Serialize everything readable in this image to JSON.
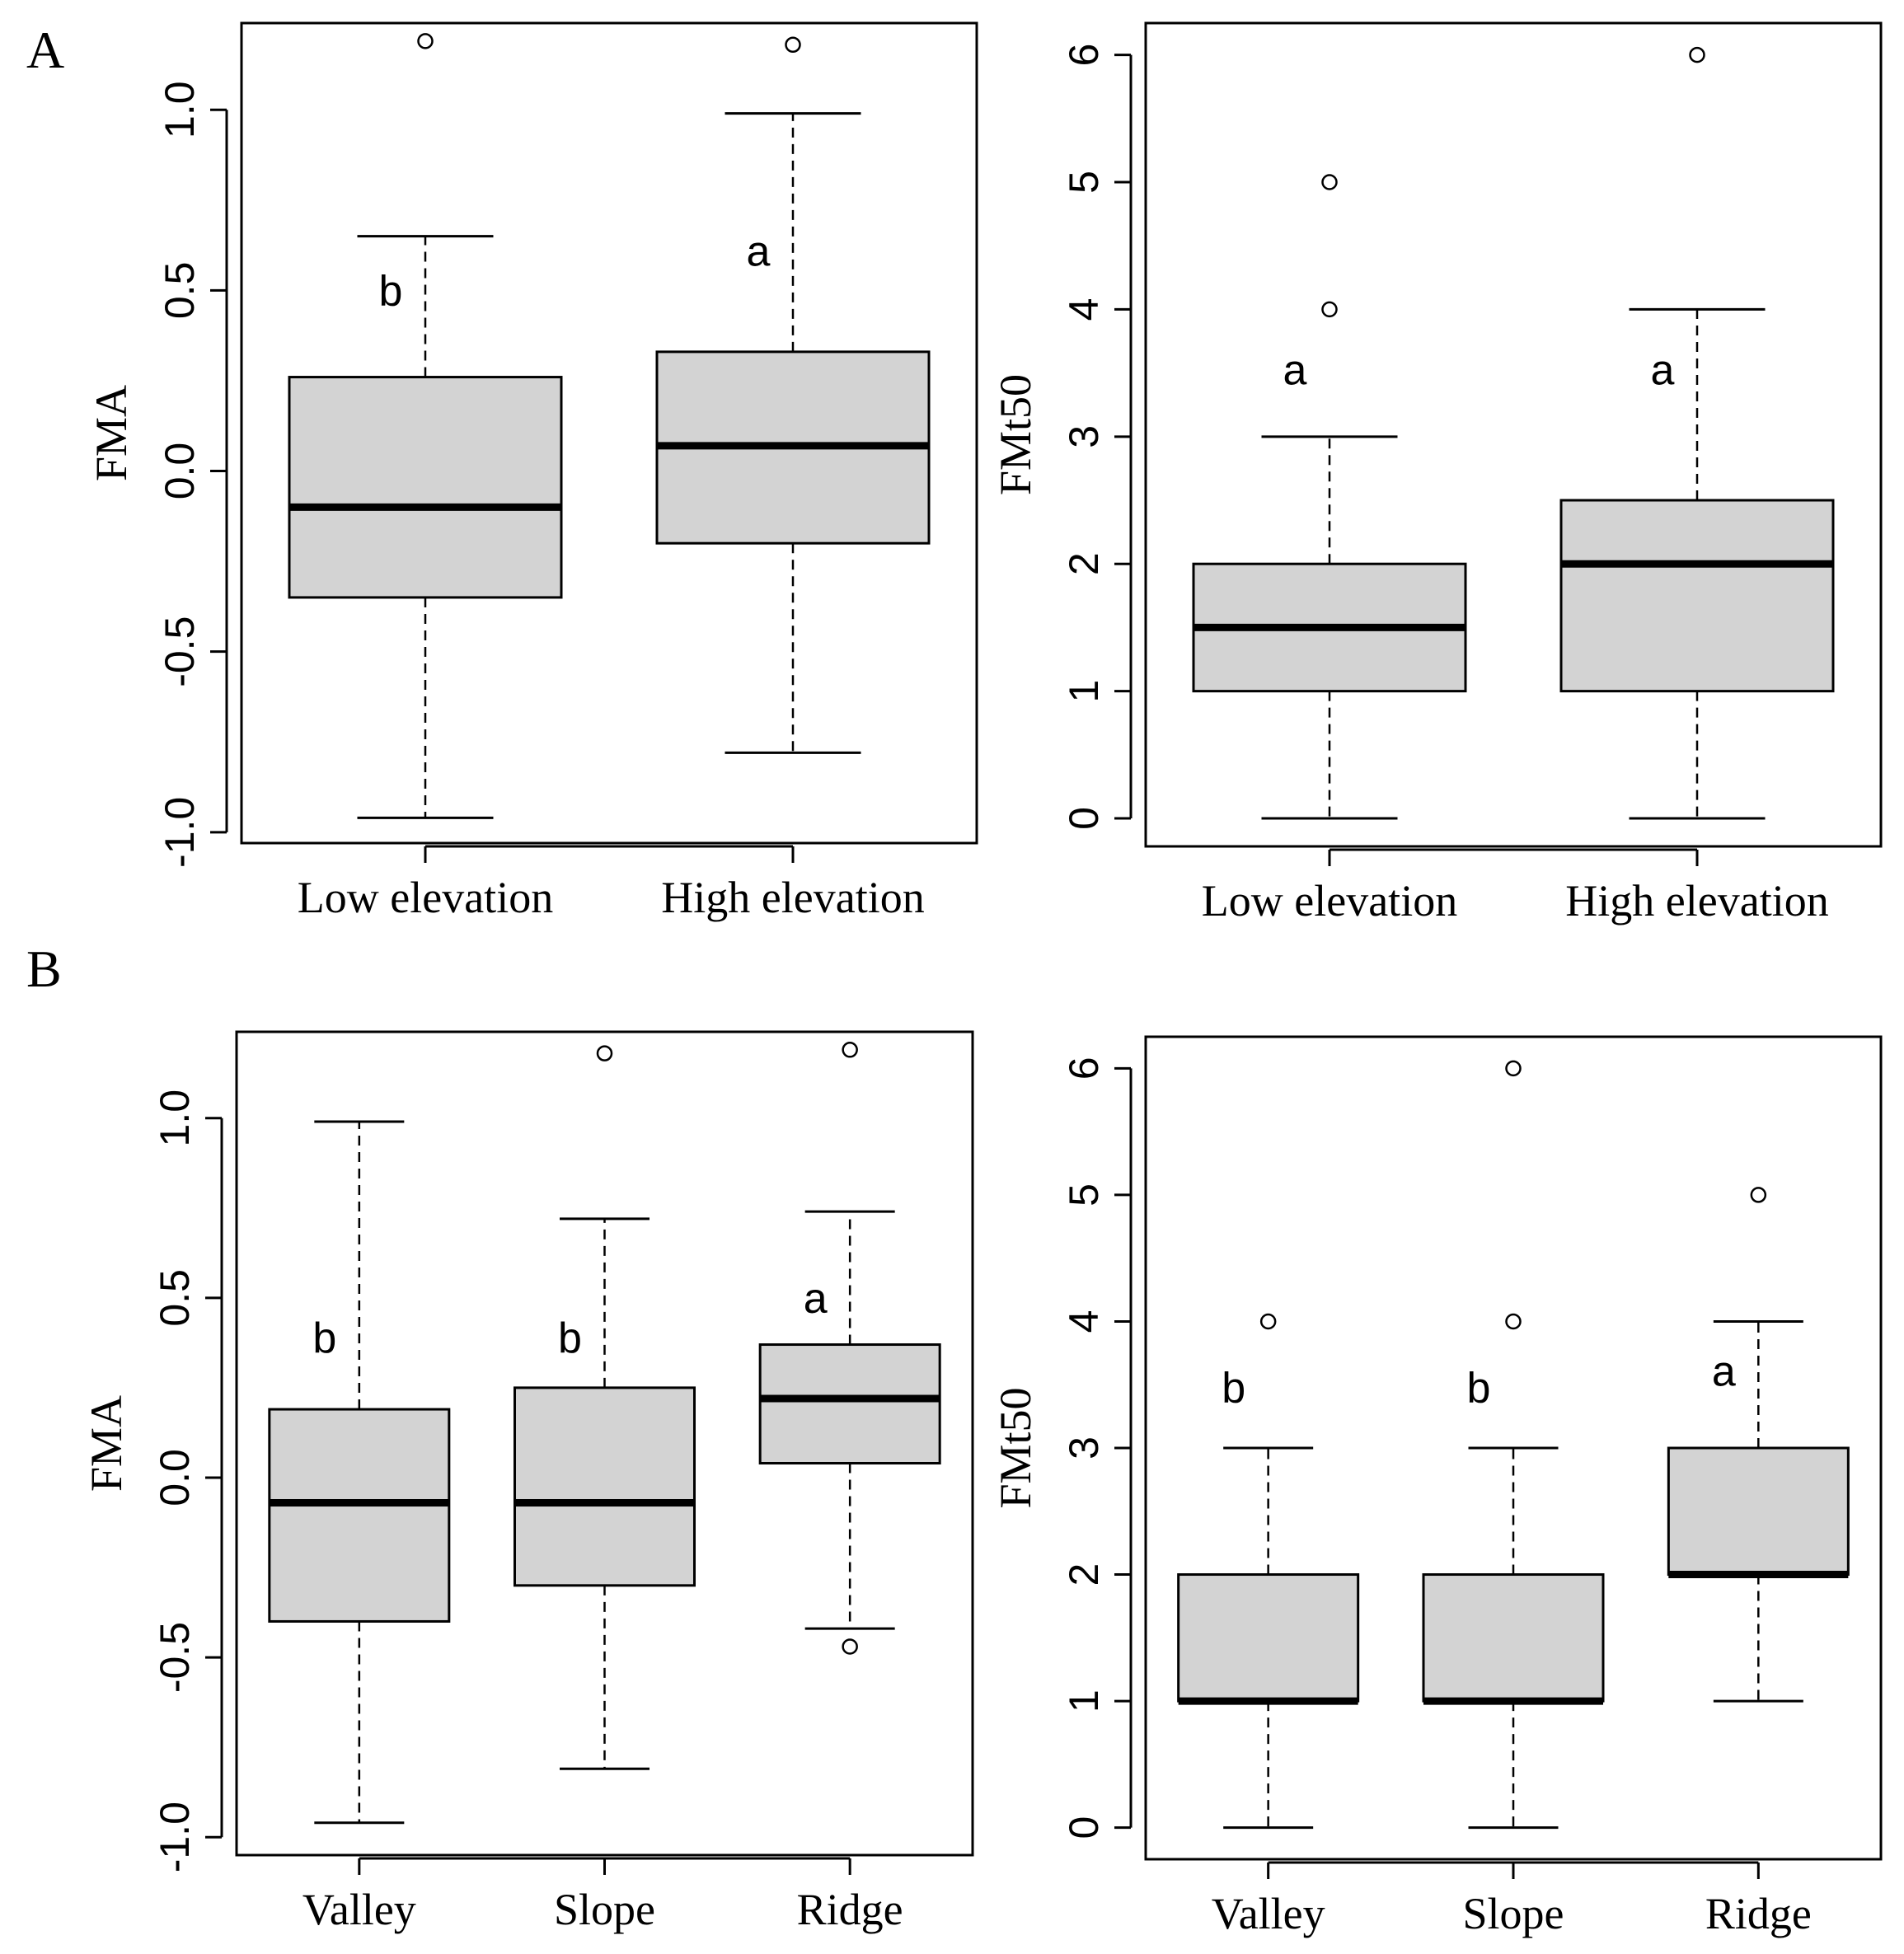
{
  "panels": {
    "A": "A",
    "B": "B"
  },
  "colors": {
    "box_fill": "#d3d3d3",
    "stroke": "#000000",
    "background": "#ffffff"
  },
  "chart_data": [
    {
      "id": "A-left",
      "type": "boxplot",
      "panel": "A",
      "ylabel": "FMA",
      "ylim": [
        -1.03,
        1.24
      ],
      "yticks": [
        -1.0,
        -0.5,
        0.0,
        0.5,
        1.0
      ],
      "ytick_labels": [
        "-1.0",
        "-0.5",
        "0.0",
        "0.5",
        "1.0"
      ],
      "categories": [
        "Low elevation",
        "High elevation"
      ],
      "boxes": [
        {
          "whisker_low": -0.96,
          "q1": -0.35,
          "median": -0.1,
          "q3": 0.26,
          "whisker_high": 0.65,
          "outliers": [
            1.19
          ],
          "letter": "b",
          "letter_y": 0.49
        },
        {
          "whisker_low": -0.78,
          "q1": -0.2,
          "median": 0.07,
          "q3": 0.33,
          "whisker_high": 0.99,
          "outliers": [
            1.18
          ],
          "letter": "a",
          "letter_y": 0.6
        }
      ]
    },
    {
      "id": "A-right",
      "type": "boxplot",
      "panel": "A",
      "ylabel": "FMt50",
      "ylim": [
        -0.22,
        6.25
      ],
      "yticks": [
        0,
        1,
        2,
        3,
        4,
        5,
        6
      ],
      "ytick_labels": [
        "0",
        "1",
        "2",
        "3",
        "4",
        "5",
        "6"
      ],
      "categories": [
        "Low elevation",
        "High elevation"
      ],
      "boxes": [
        {
          "whisker_low": 0,
          "q1": 1,
          "median": 1.5,
          "q3": 2,
          "whisker_high": 3,
          "outliers": [
            4,
            5
          ],
          "letter": "a",
          "letter_y": 3.5
        },
        {
          "whisker_low": 0,
          "q1": 1,
          "median": 2,
          "q3": 2.5,
          "whisker_high": 4,
          "outliers": [
            6
          ],
          "letter": "a",
          "letter_y": 3.5
        }
      ]
    },
    {
      "id": "B-left",
      "type": "boxplot",
      "panel": "B",
      "ylabel": "FMA",
      "ylim": [
        -1.05,
        1.24
      ],
      "yticks": [
        -1.0,
        -0.5,
        0.0,
        0.5,
        1.0
      ],
      "ytick_labels": [
        "-1.0",
        "-0.5",
        "0.0",
        "0.5",
        "1.0"
      ],
      "categories": [
        "Valley",
        "Slope",
        "Ridge"
      ],
      "boxes": [
        {
          "whisker_low": -0.96,
          "q1": -0.4,
          "median": -0.07,
          "q3": 0.19,
          "whisker_high": 0.99,
          "outliers": [],
          "letter": "b",
          "letter_y": 0.38
        },
        {
          "whisker_low": -0.81,
          "q1": -0.3,
          "median": -0.07,
          "q3": 0.25,
          "whisker_high": 0.72,
          "outliers": [
            1.18
          ],
          "letter": "b",
          "letter_y": 0.38
        },
        {
          "whisker_low": -0.42,
          "q1": 0.04,
          "median": 0.22,
          "q3": 0.37,
          "whisker_high": 0.74,
          "outliers": [
            1.19,
            -0.47
          ],
          "letter": "a",
          "letter_y": 0.49
        }
      ]
    },
    {
      "id": "B-right",
      "type": "boxplot",
      "panel": "B",
      "ylabel": "FMt50",
      "ylim": [
        -0.25,
        6.25
      ],
      "yticks": [
        0,
        1,
        2,
        3,
        4,
        5,
        6
      ],
      "ytick_labels": [
        "0",
        "1",
        "2",
        "3",
        "4",
        "5",
        "6"
      ],
      "categories": [
        "Valley",
        "Slope",
        "Ridge"
      ],
      "boxes": [
        {
          "whisker_low": 0,
          "q1": 1,
          "median": 1,
          "q3": 2,
          "whisker_high": 3,
          "outliers": [
            4
          ],
          "letter": "b",
          "letter_y": 3.45
        },
        {
          "whisker_low": 0,
          "q1": 1,
          "median": 1,
          "q3": 2,
          "whisker_high": 3,
          "outliers": [
            4,
            6
          ],
          "letter": "b",
          "letter_y": 3.45
        },
        {
          "whisker_low": 1,
          "q1": 2,
          "median": 2,
          "q3": 3,
          "whisker_high": 4,
          "outliers": [
            5
          ],
          "letter": "a",
          "letter_y": 3.58
        }
      ]
    }
  ]
}
